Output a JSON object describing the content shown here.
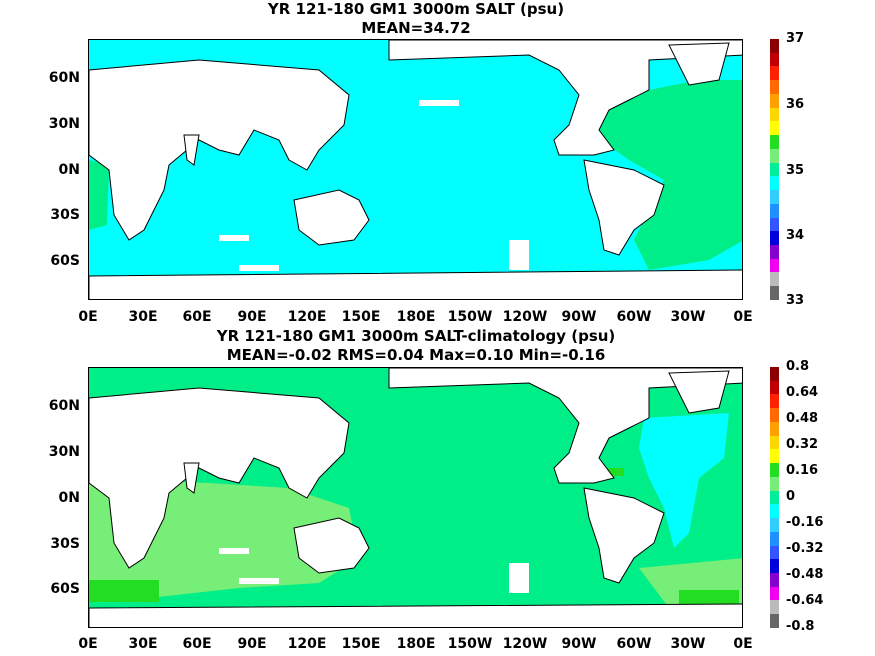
{
  "map1": {
    "title_line1": "YR 121-180 GM1 3000m SALT (psu)",
    "title_line2": "MEAN=34.72",
    "colorbar_ticks": [
      "37",
      "36",
      "35",
      "34",
      "33"
    ],
    "colorbar_colors": [
      "#8b0000",
      "#c00000",
      "#ff2000",
      "#ff6a00",
      "#ff9f00",
      "#ffd700",
      "#ffff00",
      "#22dd22",
      "#77ee77",
      "#00ee99",
      "#00ffff",
      "#33ccff",
      "#1e90ff",
      "#3355ff",
      "#0000dd",
      "#8800cc",
      "#ee00ee",
      "#bbbbbb",
      "#666666"
    ]
  },
  "map2": {
    "title_line1": "YR 121-180 GM1 3000m SALT-climatology (psu)",
    "title_line2": "MEAN=-0.02   RMS=0.04   Max=0.10   Min=-0.16",
    "colorbar_ticks": [
      "0.8",
      "0.64",
      "0.48",
      "0.32",
      "0.16",
      "0",
      "-0.16",
      "-0.32",
      "-0.48",
      "-0.64",
      "-0.8"
    ],
    "colorbar_colors": [
      "#8b0000",
      "#c00000",
      "#ff2000",
      "#ff6a00",
      "#ff9f00",
      "#ffd700",
      "#ffff00",
      "#22dd22",
      "#77ee77",
      "#00ee99",
      "#00ffff",
      "#33ccff",
      "#1e90ff",
      "#3355ff",
      "#0000dd",
      "#8800cc",
      "#ee00ee",
      "#bbbbbb",
      "#666666"
    ]
  },
  "lat_labels": [
    "60N",
    "30N",
    "0N",
    "30S",
    "60S"
  ],
  "lon_labels": [
    "0E",
    "30E",
    "60E",
    "90E",
    "120E",
    "150E",
    "180E",
    "150W",
    "120W",
    "90W",
    "60W",
    "30W",
    "0E"
  ],
  "colors": {
    "cyan": "#00ffff",
    "green": "#00ee88",
    "light_green": "#77ee77",
    "bright_green": "#22dd22",
    "land": "#ffffff"
  }
}
